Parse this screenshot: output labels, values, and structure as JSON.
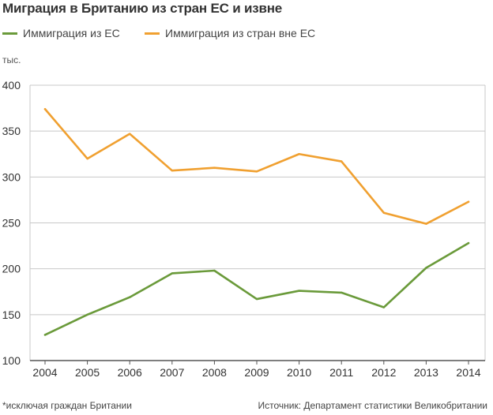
{
  "title": "Миграция в Британию из стран ЕС и извне",
  "unit_label": "тыс.",
  "footnote": "*исключая граждан Британии",
  "source": "Источник: Департамент статистики Великобритании",
  "colors": {
    "eu": "#6a9a3a",
    "non_eu": "#f0a030",
    "grid": "#c8c8c8",
    "axis": "#555555"
  },
  "chart_data": {
    "type": "line",
    "title": "Миграция в Британию из стран ЕС и извне",
    "xlabel": "",
    "ylabel": "тыс.",
    "x": [
      "2004",
      "2005",
      "2006",
      "2007",
      "2008",
      "2009",
      "2010",
      "2011",
      "2012",
      "2013",
      "2014"
    ],
    "ylim": [
      100,
      400
    ],
    "yticks": [
      100,
      150,
      200,
      250,
      300,
      350,
      400
    ],
    "grid": true,
    "legend_position": "top-left",
    "series": [
      {
        "name": "Иммиграция из ЕС",
        "color": "#6a9a3a",
        "values": [
          128,
          150,
          169,
          195,
          198,
          167,
          176,
          174,
          158,
          201,
          228
        ]
      },
      {
        "name": "Иммиграция из стран вне ЕС",
        "color": "#f0a030",
        "values": [
          374,
          320,
          347,
          307,
          310,
          306,
          325,
          317,
          261,
          249,
          273
        ]
      }
    ]
  }
}
